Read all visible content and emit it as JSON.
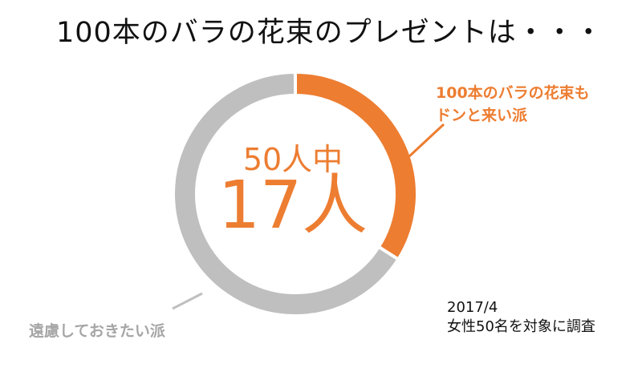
{
  "title": "100本のバラの花束のプレゼントは・・・",
  "chart_data": {
    "type": "pie",
    "style": "donut",
    "total": 50,
    "slices": [
      {
        "label": "100本のバラの花束もドンと来い派",
        "value": 17,
        "color": "#ed7d31"
      },
      {
        "label": "遠慮しておきたい派",
        "value": 33,
        "color": "#bfbfbf"
      }
    ],
    "center_text": {
      "top": "50人中",
      "main": "17人"
    }
  },
  "labels": {
    "orange_line1": "100本のバラの花束も",
    "orange_line2": "ドンと来い派",
    "gray": "遠慮しておきたい派"
  },
  "note": {
    "date": "2017/4",
    "survey": "女性50名を対象に調査"
  }
}
